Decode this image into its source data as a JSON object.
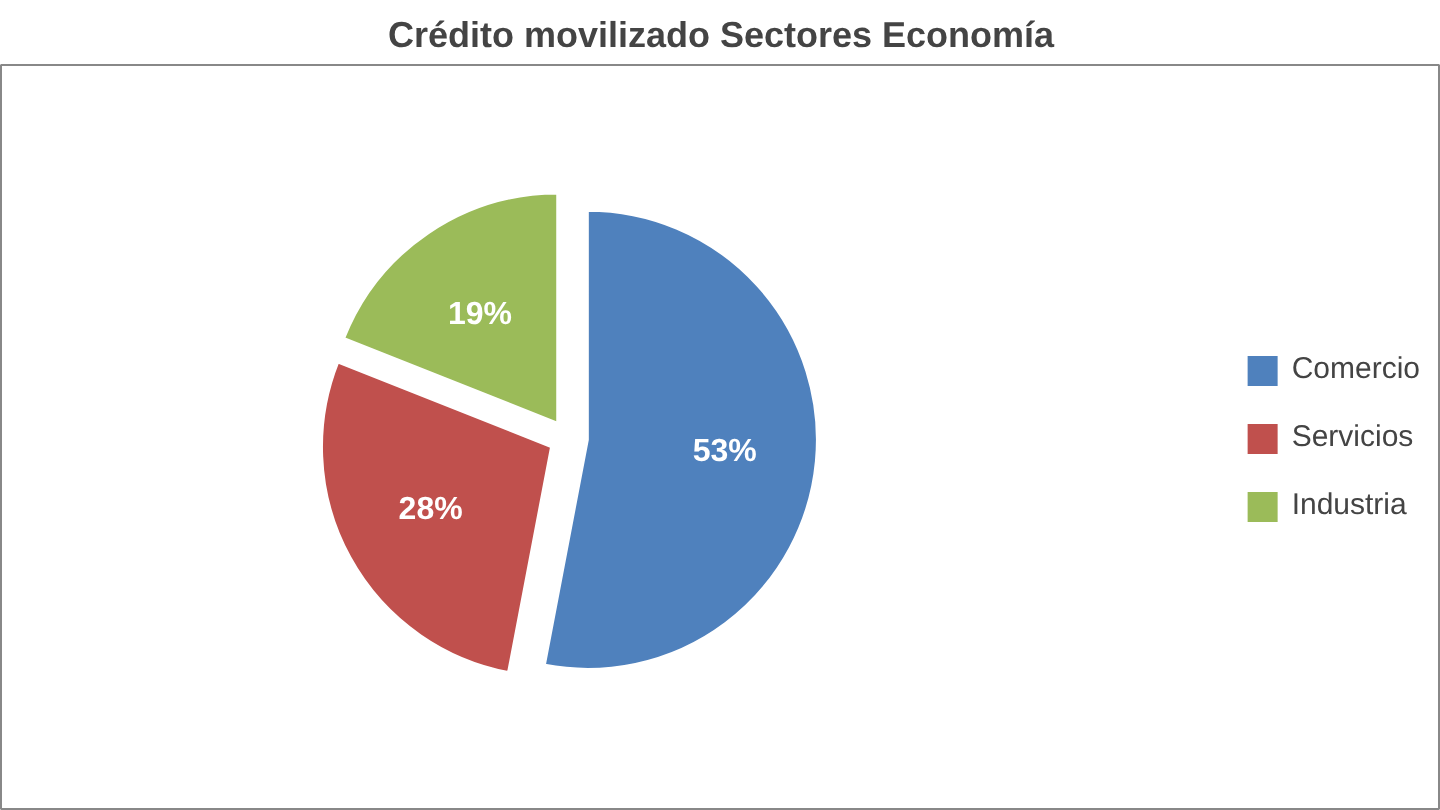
{
  "chart_data": {
    "type": "pie",
    "title": "Crédito movilizado Sectores Economía",
    "categories": [
      "Comercio",
      "Servicios",
      "Industria"
    ],
    "values": [
      53,
      28,
      19
    ],
    "colors": [
      "#4f81bd",
      "#c0504d",
      "#9bbb59"
    ],
    "value_labels": [
      "53%",
      "28%",
      "19%"
    ],
    "legend": "right"
  }
}
